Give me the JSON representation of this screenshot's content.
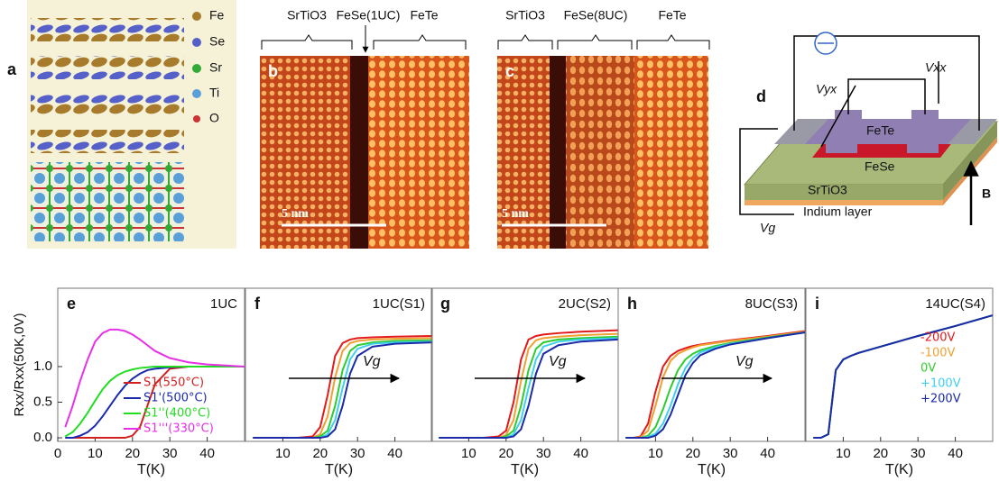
{
  "figure_top": {
    "a": {
      "label": "a",
      "legend": [
        "Fe",
        "Se",
        "Sr",
        "Ti",
        "O"
      ]
    },
    "b": {
      "label": "b",
      "regions": [
        "SrTiO3",
        "FeSe(1UC)",
        "FeTe"
      ],
      "scale": "5 nm"
    },
    "c": {
      "label": "c",
      "regions": [
        "SrTiO3",
        "FeSe(8UC)",
        "FeTe"
      ],
      "scale": "5 nm"
    },
    "d": {
      "label": "d",
      "vyx": "Vyx",
      "vxx": "Vxx",
      "fete": "FeTe",
      "fese": "FeSe",
      "substrate": "SrTiO3",
      "indium": "Indium layer",
      "vg": "Vg",
      "field": "B"
    }
  },
  "chart_data": [
    {
      "type": "line",
      "panel": "e",
      "annotation": "1UC",
      "xlabel": "T(K)",
      "ylabel": "Rxx/Rxx(50K,0V)",
      "x": [
        2,
        4,
        6,
        8,
        10,
        12,
        14,
        16,
        18,
        20,
        22,
        24,
        26,
        30,
        35,
        40,
        50
      ],
      "xlim": [
        0,
        50
      ],
      "ylim": [
        -0.05,
        2.1
      ],
      "xticks": [
        0,
        10,
        20,
        30,
        40
      ],
      "yticks": [
        {
          "value": 0,
          "label": "0.0"
        },
        0.5,
        {
          "value": 1,
          "label": "1.0"
        }
      ],
      "legend": "lower right",
      "series": [
        {
          "name": "S1(550°C)",
          "color": "#d41f1f",
          "values": [
            0,
            0,
            0,
            0,
            0,
            0,
            0,
            0,
            0,
            0.03,
            0.15,
            0.45,
            0.75,
            0.97,
            1,
            1,
            1
          ]
        },
        {
          "name": "S1'(500°C)",
          "color": "#1a2ab0",
          "values": [
            0,
            0,
            0.03,
            0.08,
            0.17,
            0.3,
            0.45,
            0.6,
            0.73,
            0.83,
            0.9,
            0.95,
            0.97,
            0.99,
            1,
            1,
            1
          ]
        },
        {
          "name": "S1''(400°C)",
          "color": "#22dd22",
          "values": [
            0.02,
            0.08,
            0.2,
            0.35,
            0.52,
            0.68,
            0.8,
            0.88,
            0.93,
            0.96,
            0.98,
            0.99,
            1,
            1,
            1,
            1,
            1
          ]
        },
        {
          "name": "S1'''(330°C)",
          "color": "#e830e8",
          "values": [
            0.15,
            0.45,
            0.8,
            1.1,
            1.35,
            1.47,
            1.52,
            1.52,
            1.5,
            1.45,
            1.38,
            1.3,
            1.22,
            1.12,
            1.06,
            1.03,
            1
          ]
        }
      ]
    },
    {
      "type": "line",
      "panel": "f",
      "annotation": "1UC(S1)",
      "xlabel": "T(K)",
      "arrow_label": "Vg",
      "x": [
        2,
        6,
        10,
        14,
        18,
        20,
        22,
        24,
        26,
        28,
        30,
        34,
        40,
        50
      ],
      "xlim": [
        0,
        50
      ],
      "ylim": [
        -0.05,
        2.1
      ],
      "xticks": [
        10,
        20,
        30,
        40
      ],
      "series": [
        {
          "color": "#e31a1c",
          "values": [
            0,
            0,
            0,
            0,
            0.02,
            0.15,
            0.6,
            1.15,
            1.33,
            1.38,
            1.4,
            1.41,
            1.42,
            1.43
          ]
        },
        {
          "color": "#f0a030",
          "values": [
            0,
            0,
            0,
            0,
            0,
            0.05,
            0.3,
            0.85,
            1.22,
            1.33,
            1.36,
            1.38,
            1.39,
            1.4
          ]
        },
        {
          "color": "#2ecc2e",
          "values": [
            0,
            0,
            0,
            0,
            0,
            0.02,
            0.1,
            0.45,
            0.95,
            1.22,
            1.3,
            1.34,
            1.36,
            1.37
          ]
        },
        {
          "color": "#3fd0f0",
          "values": [
            0,
            0,
            0,
            0,
            0,
            0,
            0.05,
            0.25,
            0.7,
            1.1,
            1.25,
            1.32,
            1.34,
            1.35
          ]
        },
        {
          "color": "#1a2aa8",
          "values": [
            0,
            0,
            0,
            0,
            0,
            0,
            0.02,
            0.12,
            0.45,
            0.9,
            1.15,
            1.28,
            1.32,
            1.34
          ]
        }
      ]
    },
    {
      "type": "line",
      "panel": "g",
      "annotation": "2UC(S2)",
      "xlabel": "T(K)",
      "arrow_label": "Vg",
      "x": [
        2,
        6,
        10,
        14,
        18,
        20,
        22,
        24,
        26,
        28,
        30,
        34,
        40,
        50
      ],
      "xlim": [
        0,
        50
      ],
      "ylim": [
        -0.05,
        2.1
      ],
      "xticks": [
        10,
        20,
        30,
        40
      ],
      "series": [
        {
          "color": "#e31a1c",
          "values": [
            0,
            0,
            0,
            0,
            0.02,
            0.1,
            0.5,
            1.1,
            1.38,
            1.43,
            1.45,
            1.47,
            1.49,
            1.51
          ]
        },
        {
          "color": "#f0a030",
          "values": [
            0,
            0,
            0,
            0,
            0,
            0.04,
            0.25,
            0.8,
            1.25,
            1.37,
            1.4,
            1.42,
            1.44,
            1.46
          ]
        },
        {
          "color": "#2ecc2e",
          "values": [
            0,
            0,
            0,
            0,
            0,
            0.02,
            0.1,
            0.45,
            0.95,
            1.25,
            1.34,
            1.38,
            1.4,
            1.42
          ]
        },
        {
          "color": "#3fd0f0",
          "values": [
            0,
            0,
            0,
            0,
            0,
            0,
            0.05,
            0.25,
            0.7,
            1.1,
            1.28,
            1.35,
            1.38,
            1.4
          ]
        },
        {
          "color": "#1a2aa8",
          "values": [
            0,
            0,
            0,
            0,
            0,
            0,
            0.02,
            0.12,
            0.45,
            0.9,
            1.18,
            1.3,
            1.35,
            1.38
          ]
        }
      ]
    },
    {
      "type": "line",
      "panel": "h",
      "annotation": "8UC(S3)",
      "xlabel": "T(K)",
      "arrow_label": "Vg",
      "x": [
        2,
        4,
        6,
        8,
        10,
        12,
        14,
        16,
        18,
        20,
        22,
        26,
        30,
        40,
        50
      ],
      "xlim": [
        0,
        50
      ],
      "ylim": [
        -0.05,
        2.1
      ],
      "xticks": [
        10,
        20,
        30,
        40
      ],
      "series": [
        {
          "color": "#e31a1c",
          "values": [
            0,
            0,
            0.02,
            0.2,
            0.65,
            1,
            1.15,
            1.22,
            1.26,
            1.29,
            1.31,
            1.34,
            1.37,
            1.43,
            1.5
          ]
        },
        {
          "color": "#f0a030",
          "values": [
            0,
            0,
            0.01,
            0.1,
            0.45,
            0.85,
            1.08,
            1.18,
            1.23,
            1.27,
            1.3,
            1.33,
            1.36,
            1.42,
            1.49
          ]
        },
        {
          "color": "#2ecc2e",
          "values": [
            0,
            0,
            0,
            0.03,
            0.15,
            0.4,
            0.7,
            0.95,
            1.1,
            1.18,
            1.23,
            1.29,
            1.33,
            1.41,
            1.48
          ]
        },
        {
          "color": "#3fd0f0",
          "values": [
            0,
            0,
            0,
            0.01,
            0.06,
            0.2,
            0.45,
            0.75,
            0.98,
            1.12,
            1.2,
            1.27,
            1.32,
            1.4,
            1.48
          ]
        },
        {
          "color": "#1a2aa8",
          "values": [
            0,
            0,
            0,
            0,
            0.03,
            0.12,
            0.32,
            0.6,
            0.88,
            1.05,
            1.16,
            1.25,
            1.31,
            1.4,
            1.48
          ]
        }
      ]
    },
    {
      "type": "line",
      "panel": "i",
      "annotation": "14UC(S4)",
      "xlabel": "T(K)",
      "x": [
        2,
        4,
        6,
        8,
        10,
        12,
        14,
        16,
        18,
        20,
        22,
        26,
        30,
        40,
        50
      ],
      "xlim": [
        0,
        50
      ],
      "ylim": [
        -0.05,
        2.1
      ],
      "xticks": [
        10,
        20,
        30,
        40
      ],
      "legend": "right",
      "series": [
        {
          "name": "-200V",
          "color": "#e31a1c",
          "values": [
            0,
            0,
            0.05,
            0.95,
            1.1,
            1.15,
            1.19,
            1.22,
            1.25,
            1.28,
            1.31,
            1.37,
            1.43,
            1.57,
            1.72
          ]
        },
        {
          "name": "-100V",
          "color": "#f0a030",
          "values": [
            0,
            0,
            0.05,
            0.95,
            1.1,
            1.15,
            1.19,
            1.22,
            1.25,
            1.28,
            1.31,
            1.37,
            1.43,
            1.57,
            1.72
          ]
        },
        {
          "name": "0V",
          "color": "#2ecc2e",
          "values": [
            0,
            0,
            0.05,
            0.95,
            1.1,
            1.15,
            1.19,
            1.22,
            1.25,
            1.28,
            1.31,
            1.37,
            1.43,
            1.57,
            1.72
          ]
        },
        {
          "name": "+100V",
          "color": "#3fd0f0",
          "values": [
            0,
            0,
            0.05,
            0.95,
            1.1,
            1.15,
            1.19,
            1.22,
            1.25,
            1.28,
            1.31,
            1.37,
            1.43,
            1.57,
            1.72
          ]
        },
        {
          "name": "+200V",
          "color": "#1a2aa8",
          "values": [
            0,
            0,
            0.05,
            0.95,
            1.1,
            1.15,
            1.19,
            1.22,
            1.25,
            1.28,
            1.31,
            1.37,
            1.43,
            1.57,
            1.72
          ]
        }
      ]
    }
  ]
}
